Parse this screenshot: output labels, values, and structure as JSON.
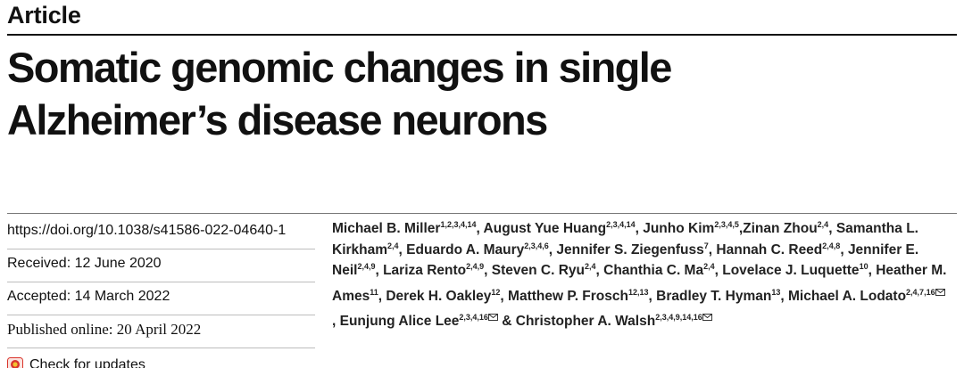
{
  "article_label": "Article",
  "title": {
    "line1": "Somatic genomic changes in single",
    "line2": "Alzheimer’s disease neurons"
  },
  "meta": {
    "doi": "https://doi.org/10.1038/s41586-022-04640-1",
    "received": "Received: 12 June 2020",
    "accepted": "Accepted: 14 March 2022",
    "published": "Published online: 20 April 2022",
    "check_updates": "Check for updates"
  },
  "authors": [
    {
      "name": "Michael B. Miller",
      "aff": "1,2,3,4,14",
      "sep": ", "
    },
    {
      "name": "August Yue Huang",
      "aff": "2,3,4,14",
      "sep": ", "
    },
    {
      "name": "Junho Kim",
      "aff": "2,3,4,5",
      "sep": ","
    },
    {
      "name": "Zinan Zhou",
      "aff": "2,4",
      "sep": ", "
    },
    {
      "name": "Samantha L. Kirkham",
      "aff": "2,4",
      "sep": ", "
    },
    {
      "name": "Eduardo A. Maury",
      "aff": "2,3,4,6",
      "sep": ", "
    },
    {
      "name": "Jennifer S. Ziegenfuss",
      "aff": "7",
      "sep": ", "
    },
    {
      "name": "Hannah C. Reed",
      "aff": "2,4,8",
      "sep": ", "
    },
    {
      "name": "Jennifer E. Neil",
      "aff": "2,4,9",
      "sep": ", "
    },
    {
      "name": "Lariza Rento",
      "aff": "2,4,9",
      "sep": ", "
    },
    {
      "name": "Steven C. Ryu",
      "aff": "2,4",
      "sep": ", "
    },
    {
      "name": "Chanthia C. Ma",
      "aff": "2,4",
      "sep": ", "
    },
    {
      "name": "Lovelace J. Luquette",
      "aff": "10",
      "sep": ", "
    },
    {
      "name": "Heather M. Ames",
      "aff": "11",
      "sep": ", "
    },
    {
      "name": "Derek H. Oakley",
      "aff": "12",
      "sep": ", "
    },
    {
      "name": "Matthew P. Frosch",
      "aff": "12,13",
      "sep": ", "
    },
    {
      "name": "Bradley T. Hyman",
      "aff": "13",
      "sep": ", "
    },
    {
      "name": "Michael A. Lodato",
      "aff": "2,4,7,16",
      "mail": true,
      "sep": ", "
    },
    {
      "name": "Eunjung Alice Lee",
      "aff": "2,3,4,16",
      "mail": true,
      "sep": " & "
    },
    {
      "name": "Christopher A. Walsh",
      "aff": "2,3,4,9,14,16",
      "mail": true,
      "sep": ""
    }
  ],
  "icons": {
    "check_updates": "check-for-updates-icon",
    "corresponding": "envelope-icon"
  },
  "colors": {
    "text": "#111111",
    "check_icon_red": "#d9342b",
    "check_icon_yellow": "#f2c12e"
  }
}
